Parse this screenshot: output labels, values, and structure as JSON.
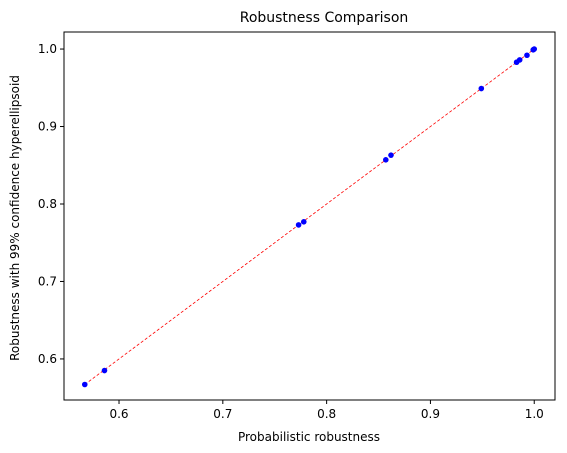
{
  "chart_data": {
    "type": "scatter",
    "title": "Robustness Comparison",
    "xlabel": "Probabilistic robustness",
    "ylabel": "Robustness with 99% confidence hyperellipsoid",
    "xlim": [
      0.547,
      1.02
    ],
    "ylim": [
      0.547,
      1.022
    ],
    "xticks": [
      0.6,
      0.7,
      0.8,
      0.9,
      1.0
    ],
    "xtick_labels": [
      "0.6",
      "0.7",
      "0.8",
      "0.9",
      "1.0"
    ],
    "yticks": [
      0.6,
      0.7,
      0.8,
      0.9,
      1.0
    ],
    "ytick_labels": [
      "0.6",
      "0.7",
      "0.8",
      "0.9",
      "1.0"
    ],
    "grid": false,
    "series": [
      {
        "kind": "points",
        "color": "#0000ff",
        "points": [
          {
            "x": 0.567,
            "y": 0.567
          },
          {
            "x": 0.586,
            "y": 0.585
          },
          {
            "x": 0.773,
            "y": 0.773
          },
          {
            "x": 0.778,
            "y": 0.777
          },
          {
            "x": 0.857,
            "y": 0.857
          },
          {
            "x": 0.862,
            "y": 0.863
          },
          {
            "x": 0.949,
            "y": 0.949
          },
          {
            "x": 0.983,
            "y": 0.983
          },
          {
            "x": 0.986,
            "y": 0.986
          },
          {
            "x": 0.993,
            "y": 0.992
          },
          {
            "x": 0.999,
            "y": 0.999
          },
          {
            "x": 1.0,
            "y": 1.0
          }
        ]
      },
      {
        "kind": "reference-line",
        "color": "#ff0000",
        "line_style": "dashed",
        "x": [
          0.567,
          1.0
        ],
        "y": [
          0.567,
          1.0
        ]
      }
    ]
  }
}
